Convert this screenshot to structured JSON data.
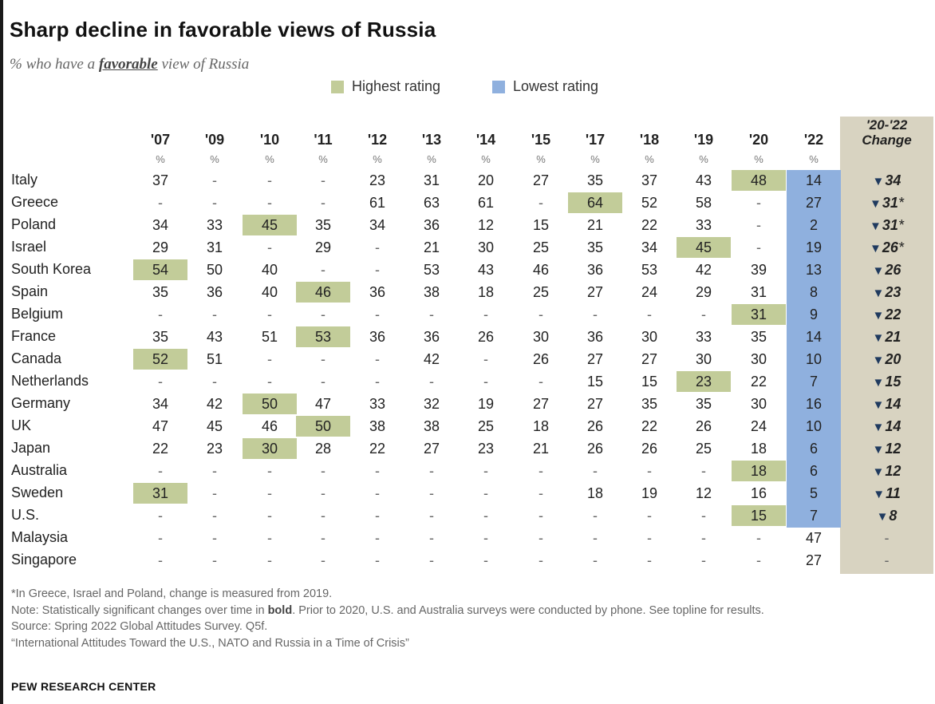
{
  "title": "Sharp decline in favorable views of Russia",
  "subtitle": {
    "pre": "% who have a ",
    "emph": "favorable",
    "post": " view of Russia"
  },
  "legend": {
    "highest_label": "Highest rating",
    "lowest_label": "Lowest rating",
    "highest_color": "#c2cc99",
    "lowest_color": "#8fb0de"
  },
  "notes": {
    "asterisk": "*In Greece, Israel and Poland, change is measured from 2019.",
    "note_pre": "Note: Statistically significant changes over time in ",
    "note_bold": "bold",
    "note_post": ". Prior to 2020, U.S. and Australia surveys were conducted by phone. See topline for results.",
    "source": "Source: Spring 2022 Global Attitudes Survey. Q5f.",
    "report": "“International Attitudes Toward the U.S., NATO and Russia in a Time of Crisis”",
    "org": "PEW RESEARCH CENTER"
  },
  "chart_data": {
    "type": "table",
    "columns": [
      "'07",
      "'09",
      "'10",
      "'11",
      "'12",
      "'13",
      "'14",
      "'15",
      "'17",
      "'18",
      "'19",
      "'20",
      "'22"
    ],
    "unit_row": [
      "%",
      "%",
      "%",
      "%",
      "%",
      "%",
      "%",
      "%",
      "%",
      "%",
      "%",
      "%",
      "%"
    ],
    "change_header": [
      "'20-'22",
      "Change"
    ],
    "rows": [
      {
        "country": "Italy",
        "values": [
          "37",
          "-",
          "-",
          "-",
          "23",
          "31",
          "20",
          "27",
          "35",
          "37",
          "43",
          "48",
          "14"
        ],
        "highest": [
          11
        ],
        "change": "34",
        "asterisk": false
      },
      {
        "country": "Greece",
        "values": [
          "-",
          "-",
          "-",
          "-",
          "61",
          "63",
          "61",
          "-",
          "64",
          "52",
          "58",
          "-",
          "27"
        ],
        "highest": [
          8
        ],
        "change": "31",
        "asterisk": true
      },
      {
        "country": "Poland",
        "values": [
          "34",
          "33",
          "45",
          "35",
          "34",
          "36",
          "12",
          "15",
          "21",
          "22",
          "33",
          "-",
          "2"
        ],
        "highest": [
          2
        ],
        "change": "31",
        "asterisk": true
      },
      {
        "country": "Israel",
        "values": [
          "29",
          "31",
          "-",
          "29",
          "-",
          "21",
          "30",
          "25",
          "35",
          "34",
          "45",
          "-",
          "19"
        ],
        "highest": [
          10
        ],
        "change": "26",
        "asterisk": true
      },
      {
        "country": "South Korea",
        "values": [
          "54",
          "50",
          "40",
          "-",
          "-",
          "53",
          "43",
          "46",
          "36",
          "53",
          "42",
          "39",
          "13"
        ],
        "highest": [
          0
        ],
        "change": "26",
        "asterisk": false
      },
      {
        "country": "Spain",
        "values": [
          "35",
          "36",
          "40",
          "46",
          "36",
          "38",
          "18",
          "25",
          "27",
          "24",
          "29",
          "31",
          "8"
        ],
        "highest": [
          3
        ],
        "change": "23",
        "asterisk": false
      },
      {
        "country": "Belgium",
        "values": [
          "-",
          "-",
          "-",
          "-",
          "-",
          "-",
          "-",
          "-",
          "-",
          "-",
          "-",
          "31",
          "9"
        ],
        "highest": [
          11
        ],
        "change": "22",
        "asterisk": false
      },
      {
        "country": "France",
        "values": [
          "35",
          "43",
          "51",
          "53",
          "36",
          "36",
          "26",
          "30",
          "36",
          "30",
          "33",
          "35",
          "14"
        ],
        "highest": [
          3
        ],
        "change": "21",
        "asterisk": false
      },
      {
        "country": "Canada",
        "values": [
          "52",
          "51",
          "-",
          "-",
          "-",
          "42",
          "-",
          "26",
          "27",
          "27",
          "30",
          "30",
          "10"
        ],
        "highest": [
          0
        ],
        "change": "20",
        "asterisk": false
      },
      {
        "country": "Netherlands",
        "values": [
          "-",
          "-",
          "-",
          "-",
          "-",
          "-",
          "-",
          "-",
          "15",
          "15",
          "23",
          "22",
          "7"
        ],
        "highest": [
          10
        ],
        "change": "15",
        "asterisk": false
      },
      {
        "country": "Germany",
        "values": [
          "34",
          "42",
          "50",
          "47",
          "33",
          "32",
          "19",
          "27",
          "27",
          "35",
          "35",
          "30",
          "16"
        ],
        "highest": [
          2
        ],
        "change": "14",
        "asterisk": false
      },
      {
        "country": "UK",
        "values": [
          "47",
          "45",
          "46",
          "50",
          "38",
          "38",
          "25",
          "18",
          "26",
          "22",
          "26",
          "24",
          "10"
        ],
        "highest": [
          3
        ],
        "change": "14",
        "asterisk": false
      },
      {
        "country": "Japan",
        "values": [
          "22",
          "23",
          "30",
          "28",
          "22",
          "27",
          "23",
          "21",
          "26",
          "26",
          "25",
          "18",
          "6"
        ],
        "highest": [
          2
        ],
        "change": "12",
        "asterisk": false
      },
      {
        "country": "Australia",
        "values": [
          "-",
          "-",
          "-",
          "-",
          "-",
          "-",
          "-",
          "-",
          "-",
          "-",
          "-",
          "18",
          "6"
        ],
        "highest": [
          11
        ],
        "change": "12",
        "asterisk": false
      },
      {
        "country": "Sweden",
        "values": [
          "31",
          "-",
          "-",
          "-",
          "-",
          "-",
          "-",
          "-",
          "18",
          "19",
          "12",
          "16",
          "5"
        ],
        "highest": [
          0
        ],
        "change": "11",
        "asterisk": false
      },
      {
        "country": "U.S.",
        "values": [
          "-",
          "-",
          "-",
          "-",
          "-",
          "-",
          "-",
          "-",
          "-",
          "-",
          "-",
          "15",
          "7"
        ],
        "highest": [
          11
        ],
        "change": "8",
        "asterisk": false
      },
      {
        "country": "Malaysia",
        "values": [
          "-",
          "-",
          "-",
          "-",
          "-",
          "-",
          "-",
          "-",
          "-",
          "-",
          "-",
          "-",
          "47"
        ],
        "highest": [],
        "change": "-",
        "asterisk": false
      },
      {
        "country": "Singapore",
        "values": [
          "-",
          "-",
          "-",
          "-",
          "-",
          "-",
          "-",
          "-",
          "-",
          "-",
          "-",
          "-",
          "27"
        ],
        "highest": [],
        "change": "-",
        "asterisk": false
      }
    ],
    "lowest_column_rows": 16
  }
}
